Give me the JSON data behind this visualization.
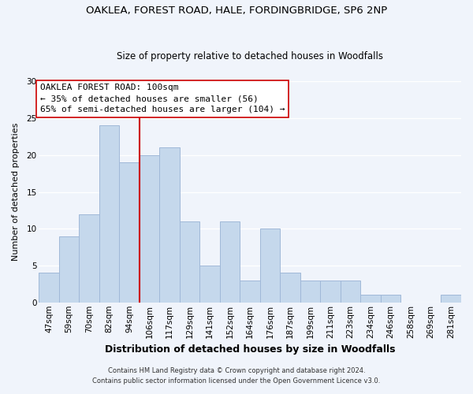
{
  "title_line1": "OAKLEA, FOREST ROAD, HALE, FORDINGBRIDGE, SP6 2NP",
  "title_line2": "Size of property relative to detached houses in Woodfalls",
  "xlabel": "Distribution of detached houses by size in Woodfalls",
  "ylabel": "Number of detached properties",
  "bar_labels": [
    "47sqm",
    "59sqm",
    "70sqm",
    "82sqm",
    "94sqm",
    "106sqm",
    "117sqm",
    "129sqm",
    "141sqm",
    "152sqm",
    "164sqm",
    "176sqm",
    "187sqm",
    "199sqm",
    "211sqm",
    "223sqm",
    "234sqm",
    "246sqm",
    "258sqm",
    "269sqm",
    "281sqm"
  ],
  "bar_values": [
    4,
    9,
    12,
    24,
    19,
    20,
    21,
    11,
    5,
    11,
    3,
    10,
    4,
    3,
    3,
    3,
    1,
    1,
    0,
    0,
    1
  ],
  "bar_color": "#c5d8ec",
  "bar_edge_color": "#a0b8d8",
  "vline_x_index": 4.5,
  "vline_color": "#cc0000",
  "annotation_title": "OAKLEA FOREST ROAD: 100sqm",
  "annotation_line1": "← 35% of detached houses are smaller (56)",
  "annotation_line2": "65% of semi-detached houses are larger (104) →",
  "annotation_box_facecolor": "#ffffff",
  "annotation_box_edgecolor": "#cc0000",
  "ylim": [
    0,
    30
  ],
  "yticks": [
    0,
    5,
    10,
    15,
    20,
    25,
    30
  ],
  "footer1": "Contains HM Land Registry data © Crown copyright and database right 2024.",
  "footer2": "Contains public sector information licensed under the Open Government Licence v3.0.",
  "bg_color": "#f0f4fb",
  "plot_bg_color": "#f0f4fb",
  "grid_color": "#ffffff",
  "title1_fontsize": 9.5,
  "title2_fontsize": 8.5,
  "xlabel_fontsize": 9,
  "ylabel_fontsize": 8,
  "tick_fontsize": 7.5
}
